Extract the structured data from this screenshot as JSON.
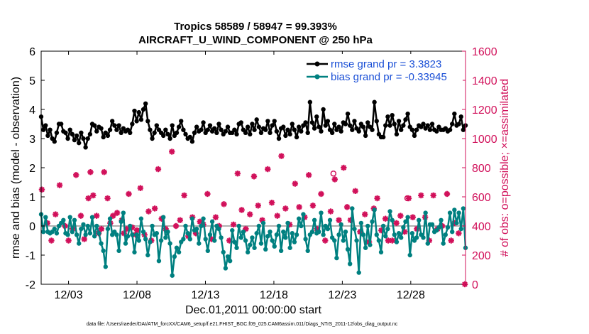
{
  "chart_data": {
    "type": "line",
    "title": "Tropics 58589 / 58947 = 99.393%",
    "subtitle": "AIRCRAFT_U_WIND_COMPONENT @ 250 hPa",
    "xlabel": "Dec.01,2011 00:00:00 start",
    "ylabel": "rmse and bias (model - observation)",
    "y2label": "# of obs: o=possible; ×=assimilated",
    "xlim": [
      1.0,
      32.0
    ],
    "ylim": [
      -2,
      6
    ],
    "y2lim": [
      0,
      1600
    ],
    "xticks": [
      3,
      8,
      13,
      18,
      23,
      28
    ],
    "xtick_labels": [
      "12/03",
      "12/08",
      "12/13",
      "12/18",
      "12/23",
      "12/28"
    ],
    "yticks": [
      -2,
      -1,
      0,
      1,
      2,
      3,
      4,
      5,
      6
    ],
    "ytick_labels": [
      "-2",
      "-1",
      "0",
      "1",
      "2",
      "3",
      "4",
      "5",
      "6"
    ],
    "y2ticks": [
      0,
      200,
      400,
      600,
      800,
      1000,
      1200,
      1400,
      1600
    ],
    "y2tick_labels": [
      "0",
      "200",
      "400",
      "600",
      "800",
      "1000",
      "1200",
      "1400",
      "1600"
    ],
    "legend": [
      "rmse grand pr = 3.3823",
      "bias grand pr = -0.33945"
    ],
    "legend_position": "top-right",
    "footnote": "data file: /Users/raeder/DAI/ATM_forcXX/CAM6_setup/f.e21.FHIST_BGC.f09_025.CAM6assim.011/Diags_NTrS_2011-12/obs_diag_output.nc",
    "colors": {
      "rmse": "#000000",
      "bias": "#008080",
      "obs": "#d1105a",
      "zero_line": "#b0b0b0"
    },
    "series": [
      {
        "name": "rmse",
        "values": [
          3.75,
          3.3,
          3.45,
          3.1,
          3.3,
          3.0,
          2.9,
          3.2,
          3.5,
          3.5,
          3.25,
          3.2,
          3.0,
          3.3,
          3.15,
          2.95,
          3.1,
          2.85,
          3.2,
          3.0,
          2.7,
          3.0,
          3.15,
          3.5,
          3.45,
          3.25,
          3.4,
          3.35,
          3.05,
          3.2,
          3.1,
          3.3,
          3.6,
          3.45,
          3.3,
          3.45,
          3.2,
          3.35,
          3.25,
          3.3,
          3.2,
          3.5,
          3.95,
          3.6,
          3.9,
          3.65,
          4.0,
          4.2,
          3.6,
          3.3,
          3.0,
          3.2,
          3.45,
          3.3,
          3.2,
          3.1,
          3.3,
          3.15,
          3.0,
          3.45,
          3.1,
          3.2,
          3.4,
          3.6,
          3.3,
          3.15,
          3.0,
          3.05,
          2.9,
          3.2,
          3.4,
          3.25,
          3.3,
          3.55,
          3.2,
          3.3,
          3.45,
          3.25,
          3.35,
          3.2,
          3.5,
          3.3,
          3.15,
          3.25,
          3.4,
          3.2,
          3.2,
          3.3,
          3.15,
          3.5,
          3.55,
          3.3,
          3.2,
          3.4,
          3.15,
          3.5,
          3.3,
          3.65,
          3.4,
          3.2,
          3.35,
          3.3,
          3.6,
          3.2,
          3.45,
          3.6,
          3.25,
          3.0,
          3.35,
          3.4,
          3.1,
          3.3,
          3.15,
          3.5,
          3.3,
          3.05,
          3.4,
          3.25,
          3.45,
          3.55,
          3.2,
          4.25,
          3.55,
          3.35,
          3.75,
          3.4,
          3.25,
          4.0,
          3.45,
          3.6,
          3.3,
          3.2,
          3.5,
          3.3,
          3.4,
          3.25,
          3.55,
          3.5,
          3.85,
          3.45,
          3.3,
          3.6,
          3.35,
          3.25,
          3.5,
          3.4,
          3.1,
          3.55,
          3.4,
          3.3,
          4.25,
          3.6,
          3.15,
          3.05,
          3.05,
          3.45,
          3.75,
          3.45,
          3.8,
          3.5,
          3.15,
          3.6,
          3.3,
          3.45,
          3.65,
          3.85,
          3.4,
          3.3,
          3.1,
          3.3,
          3.45,
          3.4,
          3.5,
          3.35,
          3.45,
          3.3,
          3.5,
          3.3,
          3.25,
          3.4,
          3.3,
          3.3,
          3.35,
          3.25,
          3.3,
          3.5,
          3.85,
          3.45,
          3.5,
          3.75,
          3.3,
          3.45
        ]
      },
      {
        "name": "bias",
        "values": [
          0.4,
          -0.2,
          0.3,
          -0.2,
          -0.25,
          -0.2,
          -0.1,
          -0.25,
          0.0,
          0.1,
          0.2,
          -0.25,
          -0.3,
          0.3,
          -0.2,
          0.2,
          -0.3,
          -0.6,
          -0.1,
          0.05,
          -0.3,
          0.0,
          -0.25,
          0.3,
          -0.35,
          0.0,
          -0.25,
          -0.6,
          -0.85,
          -1.4,
          -0.1,
          0.25,
          -0.3,
          -0.2,
          -0.3,
          -0.85,
          0.15,
          0.45,
          -0.6,
          -0.35,
          0.0,
          -0.3,
          -0.9,
          -0.3,
          -0.5,
          0.25,
          -0.2,
          -0.45,
          -1.0,
          -0.55,
          0.0,
          -0.3,
          -0.25,
          -1.2,
          -0.5,
          0.3,
          -0.4,
          -0.2,
          -0.6,
          -1.7,
          -1.05,
          -0.75,
          -0.9,
          -0.55,
          -0.45,
          0.0,
          -0.25,
          -0.45,
          0.25,
          -0.15,
          -0.1,
          -0.6,
          0.0,
          0.25,
          -0.45,
          -0.85,
          -0.3,
          0.15,
          -0.5,
          0.0,
          -0.1,
          -0.4,
          -0.9,
          -1.45,
          -1.05,
          -1.2,
          -0.15,
          -0.55,
          -0.75,
          0.0,
          -0.4,
          -0.2,
          -0.5,
          -0.9,
          -0.65,
          -0.4,
          -0.75,
          -0.25,
          0.0,
          -0.6,
          0.1,
          -0.8,
          -0.35,
          -0.2,
          -0.5,
          -0.7,
          -0.3,
          0.0,
          -0.85,
          -0.2,
          -0.4,
          0.1,
          -0.75,
          -0.25,
          -0.55,
          -0.3,
          0.25,
          0.0,
          0.4,
          -0.45,
          -0.85,
          -0.3,
          -0.2,
          0.2,
          -0.25,
          -0.2,
          0.45,
          -0.3,
          0.0,
          -0.1,
          0.2,
          -0.4,
          -0.5,
          -1.1,
          -0.3,
          0.05,
          -0.5,
          -0.2,
          -0.8,
          -1.3,
          0.6,
          -0.1,
          -0.5,
          -1.6,
          0.1,
          -0.3,
          -0.75,
          0.0,
          -0.65,
          0.15,
          0.55,
          -0.3,
          -0.5,
          -0.9,
          0.0,
          -0.35,
          -0.1,
          0.5,
          0.2,
          -0.3,
          -0.55,
          -0.25,
          -0.4,
          -0.05,
          0.15,
          0.3,
          -1.0,
          -0.25,
          -0.5,
          -0.4,
          0.2,
          -0.3,
          -0.4,
          0.45,
          -0.6,
          0.05,
          0.05,
          -0.2,
          -0.15,
          -0.05,
          0.2,
          -0.6,
          -0.3,
          -0.05,
          0.45,
          -0.2,
          0.55,
          0.1,
          0.45,
          -0.1,
          0.6,
          -0.75
        ]
      },
      {
        "name": "obs_assimilated",
        "points": [
          [
            1.05,
            650
          ],
          [
            1.45,
            420
          ],
          [
            1.75,
            300
          ],
          [
            2.05,
            480
          ],
          [
            2.35,
            680
          ],
          [
            2.75,
            400
          ],
          [
            3.0,
            300
          ],
          [
            3.3,
            380
          ],
          [
            3.55,
            750
          ],
          [
            3.9,
            470
          ],
          [
            4.15,
            310
          ],
          [
            4.45,
            590
          ],
          [
            4.6,
            770
          ],
          [
            4.8,
            610
          ],
          [
            5.05,
            470
          ],
          [
            5.2,
            350
          ],
          [
            5.4,
            380
          ],
          [
            5.6,
            770
          ],
          [
            5.85,
            590
          ],
          [
            6.05,
            420
          ],
          [
            6.25,
            470
          ],
          [
            6.55,
            490
          ],
          [
            6.9,
            440
          ],
          [
            7.05,
            350
          ],
          [
            7.25,
            380
          ],
          [
            7.4,
            620
          ],
          [
            7.65,
            390
          ],
          [
            7.9,
            340
          ],
          [
            8.0,
            370
          ],
          [
            8.25,
            660
          ],
          [
            8.55,
            340
          ],
          [
            8.85,
            500
          ],
          [
            9.05,
            300
          ],
          [
            9.3,
            520
          ],
          [
            9.55,
            790
          ],
          [
            9.8,
            450
          ],
          [
            10.1,
            380
          ],
          [
            10.55,
            910
          ],
          [
            10.85,
            400
          ],
          [
            11.15,
            440
          ],
          [
            11.45,
            610
          ],
          [
            11.75,
            330
          ],
          [
            12.05,
            460
          ],
          [
            12.3,
            350
          ],
          [
            12.6,
            430
          ],
          [
            12.85,
            410
          ],
          [
            13.15,
            620
          ],
          [
            13.45,
            310
          ],
          [
            13.75,
            460
          ],
          [
            14.0,
            400
          ],
          [
            14.35,
            550
          ],
          [
            14.75,
            300
          ],
          [
            15.05,
            410
          ],
          [
            15.35,
            760
          ],
          [
            15.65,
            510
          ],
          [
            15.95,
            380
          ],
          [
            16.25,
            480
          ],
          [
            16.55,
            740
          ],
          [
            16.85,
            540
          ],
          [
            17.15,
            440
          ],
          [
            17.55,
            790
          ],
          [
            17.85,
            560
          ],
          [
            18.25,
            470
          ],
          [
            18.55,
            880
          ],
          [
            18.85,
            520
          ],
          [
            19.15,
            410
          ],
          [
            19.55,
            690
          ],
          [
            19.85,
            530
          ],
          [
            20.25,
            460
          ],
          [
            20.55,
            750
          ],
          [
            20.85,
            540
          ],
          [
            21.15,
            380
          ],
          [
            21.45,
            620
          ],
          [
            21.75,
            300
          ],
          [
            22.15,
            500
          ],
          [
            22.45,
            720
          ],
          [
            22.75,
            440
          ],
          [
            23.1,
            800
          ],
          [
            23.35,
            530
          ],
          [
            23.6,
            440
          ],
          [
            23.95,
            640
          ],
          [
            24.3,
            360
          ],
          [
            24.65,
            480
          ],
          [
            24.95,
            290
          ],
          [
            25.3,
            520
          ],
          [
            25.55,
            590
          ],
          [
            25.85,
            370
          ],
          [
            26.15,
            450
          ],
          [
            26.35,
            300
          ],
          [
            26.65,
            300
          ],
          [
            26.95,
            420
          ],
          [
            27.25,
            470
          ],
          [
            27.55,
            360
          ],
          [
            27.85,
            590
          ],
          [
            28.15,
            460
          ],
          [
            28.45,
            380
          ],
          [
            28.75,
            610
          ],
          [
            29.05,
            460
          ],
          [
            29.35,
            300
          ],
          [
            29.65,
            610
          ],
          [
            29.95,
            380
          ],
          [
            30.3,
            400
          ],
          [
            30.65,
            620
          ],
          [
            30.95,
            300
          ],
          [
            31.2,
            420
          ],
          [
            31.5,
            350
          ],
          [
            31.95,
            0
          ]
        ]
      },
      {
        "name": "obs_possible",
        "points": [
          [
            22.35,
            760
          ],
          [
            27.75,
            590
          ]
        ]
      }
    ]
  }
}
